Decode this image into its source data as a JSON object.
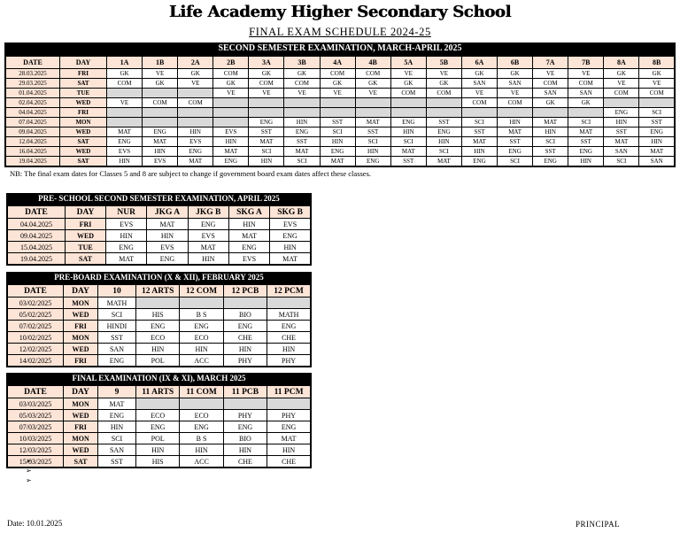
{
  "header": {
    "school_name": "Life Academy Higher Secondary School",
    "schedule_title": "FINAL EXAM SCHEDULE 2024-25"
  },
  "colors": {
    "header_fill": "#FCE4D6",
    "empty_cell_fill": "#D9D9D9",
    "title_bar_bg": "#000000",
    "title_bar_text": "#FFFFFF"
  },
  "tables": [
    {
      "title": "SECOND SEMESTER EXAMINATION, MARCH-APRIL 2025",
      "columns": [
        "DATE",
        "DAY",
        "1A",
        "1B",
        "2A",
        "2B",
        "3A",
        "3B",
        "4A",
        "4B",
        "5A",
        "5B",
        "6A",
        "6B",
        "7A",
        "7B",
        "8A",
        "8B"
      ],
      "rows": [
        {
          "date": "28.03.2025",
          "day": "FRI",
          "cells": [
            "GK",
            "VE",
            "GK",
            "COM",
            "GK",
            "GK",
            "COM",
            "COM",
            "VE",
            "VE",
            "GK",
            "GK",
            "VE",
            "VE",
            "GK",
            "GK"
          ]
        },
        {
          "date": "29.03.2025",
          "day": "SAT",
          "cells": [
            "COM",
            "GK",
            "VE",
            "GK",
            "COM",
            "COM",
            "GK",
            "GK",
            "GK",
            "GK",
            "SAN",
            "SAN",
            "COM",
            "COM",
            "VE",
            "VE"
          ]
        },
        {
          "date": "01.04.2025",
          "day": "TUE",
          "cells": [
            "",
            "",
            "",
            "VE",
            "VE",
            "VE",
            "VE",
            "VE",
            "COM",
            "COM",
            "VE",
            "VE",
            "SAN",
            "SAN",
            "COM",
            "COM"
          ]
        },
        {
          "date": "02.04.2025",
          "day": "WED",
          "cells": [
            "VE",
            "COM",
            "COM",
            "",
            "",
            "",
            "",
            "",
            "",
            "",
            "COM",
            "COM",
            "GK",
            "GK",
            "",
            ""
          ]
        },
        {
          "date": "04.04.2025",
          "day": "FRI",
          "cells": [
            "",
            "",
            "",
            "",
            "",
            "",
            "",
            "",
            "",
            "",
            "",
            "",
            "",
            "",
            "ENG",
            "SCI"
          ]
        },
        {
          "date": "07.04.2025",
          "day": "MON",
          "cells": [
            "",
            "",
            "",
            "",
            "ENG",
            "HIN",
            "SST",
            "MAT",
            "ENG",
            "SST",
            "SCI",
            "HIN",
            "MAT",
            "SCI",
            "HIN",
            "SST"
          ]
        },
        {
          "date": "09.04.2025",
          "day": "WED",
          "cells": [
            "MAT",
            "ENG",
            "HIN",
            "EVS",
            "SST",
            "ENG",
            "SCI",
            "SST",
            "HIN",
            "ENG",
            "SST",
            "MAT",
            "HIN",
            "MAT",
            "SST",
            "ENG"
          ]
        },
        {
          "date": "12.04.2025",
          "day": "SAT",
          "cells": [
            "ENG",
            "MAT",
            "EVS",
            "HIN",
            "MAT",
            "SST",
            "HIN",
            "SCI",
            "SCI",
            "HIN",
            "MAT",
            "SST",
            "SCI",
            "SST",
            "MAT",
            "HIN"
          ]
        },
        {
          "date": "16.04.2025",
          "day": "WED",
          "cells": [
            "EVS",
            "HIN",
            "ENG",
            "MAT",
            "SCI",
            "MAT",
            "ENG",
            "HIN",
            "MAT",
            "SCI",
            "HIN",
            "ENG",
            "SST",
            "ENG",
            "SAN",
            "MAT"
          ]
        },
        {
          "date": "19.04.2025",
          "day": "SAT",
          "cells": [
            "HIN",
            "EVS",
            "MAT",
            "ENG",
            "HIN",
            "SCI",
            "MAT",
            "ENG",
            "SST",
            "MAT",
            "ENG",
            "SCI",
            "ENG",
            "HIN",
            "SCI",
            "SAN"
          ]
        }
      ],
      "note": "NB: The final exam dates for Classes 5 and 8 are subject to change if government board exam dates affect these classes."
    },
    {
      "title": "PRE- SCHOOL SECOND SEMESTER EXAMINATION, APRIL 2025",
      "columns": [
        "DATE",
        "DAY",
        "NUR",
        "JKG A",
        "JKG B",
        "SKG A",
        "SKG B"
      ],
      "rows": [
        {
          "date": "04.04.2025",
          "day": "FRI",
          "cells": [
            "EVS",
            "MAT",
            "ENG",
            "HIN",
            "EVS"
          ]
        },
        {
          "date": "09.04.2025",
          "day": "WED",
          "cells": [
            "HIN",
            "HIN",
            "EVS",
            "MAT",
            "ENG"
          ]
        },
        {
          "date": "15.04.2025",
          "day": "TUE",
          "cells": [
            "ENG",
            "EVS",
            "MAT",
            "ENG",
            "HIN"
          ]
        },
        {
          "date": "19.04.2025",
          "day": "SAT",
          "cells": [
            "MAT",
            "ENG",
            "HIN",
            "EVS",
            "MAT"
          ]
        }
      ]
    },
    {
      "title": "PRE-BOARD EXAMINATION (X & XII), FEBRUARY 2025",
      "columns": [
        "DATE",
        "DAY",
        "10",
        "12 ARTS",
        "12 COM",
        "12 PCB",
        "12 PCM"
      ],
      "rows": [
        {
          "date": "03/02/2025",
          "day": "MON",
          "cells": [
            "MATH",
            "",
            "",
            "",
            ""
          ]
        },
        {
          "date": "05/02/2025",
          "day": "WED",
          "cells": [
            "SCI",
            "HIS",
            "B S",
            "BIO",
            "MATH"
          ]
        },
        {
          "date": "07/02/2025",
          "day": "FRI",
          "cells": [
            "HINDI",
            "ENG",
            "ENG",
            "ENG",
            "ENG"
          ]
        },
        {
          "date": "10/02/2025",
          "day": "MON",
          "cells": [
            "SST",
            "ECO",
            "ECO",
            "CHE",
            "CHE"
          ]
        },
        {
          "date": "12/02/2025",
          "day": "WED",
          "cells": [
            "SAN",
            "HIN",
            "HIN",
            "HIN",
            "HIN"
          ]
        },
        {
          "date": "14/02/2025",
          "day": "FRI",
          "cells": [
            "ENG",
            "POL",
            "ACC",
            "PHY",
            "PHY"
          ]
        }
      ]
    },
    {
      "title": "FINAL EXAMINATION (IX & XI), MARCH 2025",
      "columns": [
        "DATE",
        "DAY",
        "9",
        "11 ARTS",
        "11 COM",
        "11 PCB",
        "11 PCM"
      ],
      "rows": [
        {
          "date": "03/03/2025",
          "day": "MON",
          "cells": [
            "MAT",
            "",
            "",
            "",
            ""
          ]
        },
        {
          "date": "05/03/2025",
          "day": "WED",
          "cells": [
            "ENG",
            "ECO",
            "ECO",
            "PHY",
            "PHY"
          ]
        },
        {
          "date": "07/03/2025",
          "day": "FRI",
          "cells": [
            "HIN",
            "ENG",
            "ENG",
            "ENG",
            "ENG"
          ]
        },
        {
          "date": "10/03/2025",
          "day": "MON",
          "cells": [
            "SCI",
            "POL",
            "B S",
            "BIO",
            "MAT"
          ]
        },
        {
          "date": "12/03/2025",
          "day": "WED",
          "cells": [
            "SAN",
            "HIN",
            "HIN",
            "HIN",
            "HIN"
          ]
        },
        {
          "date": "15/03/2025",
          "day": "SAT",
          "cells": [
            "SST",
            "HIS",
            "ACC",
            "CHE",
            "CHE"
          ]
        }
      ]
    }
  ],
  "footer": {
    "bullets": [
      "➢",
      "➢",
      "➢"
    ],
    "date_label": "Date: 10.01.2025",
    "signature": "PRINCIPAL"
  }
}
